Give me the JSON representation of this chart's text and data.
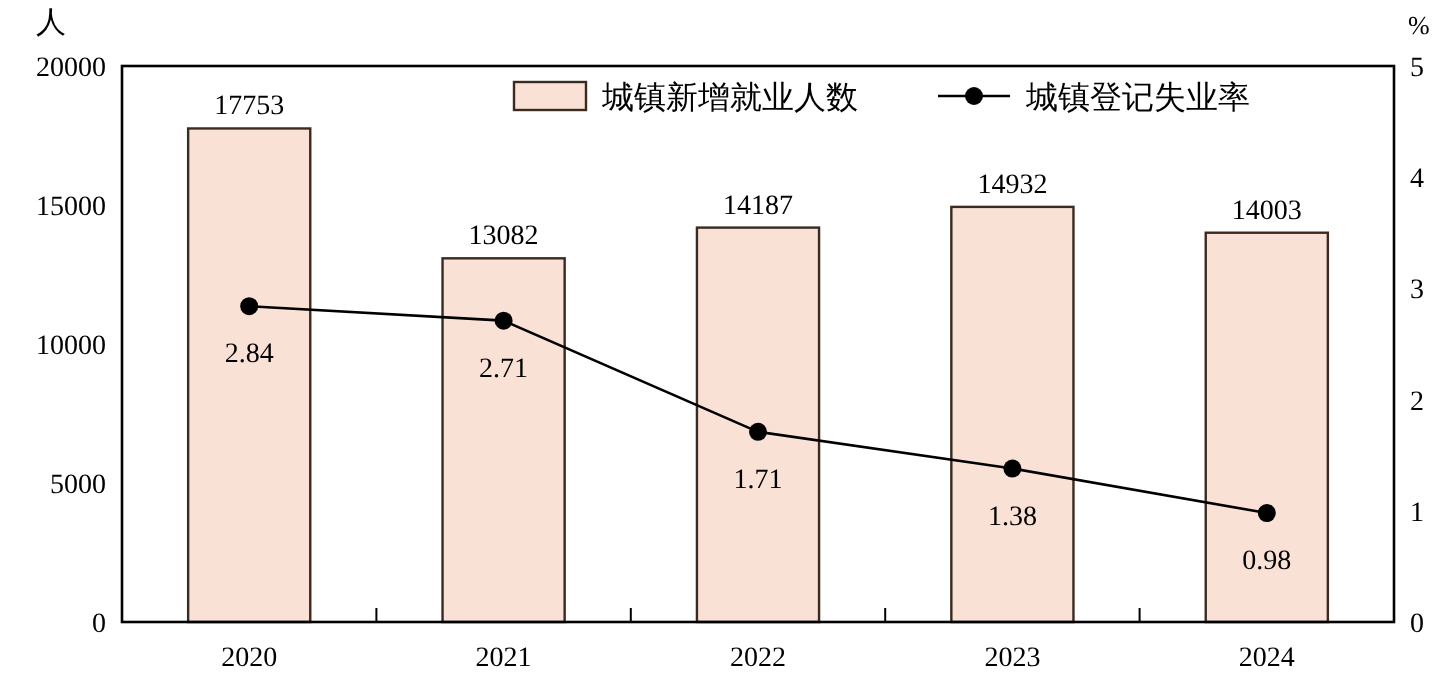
{
  "chart_data": {
    "type": "bar",
    "categories": [
      "2020",
      "2021",
      "2022",
      "2023",
      "2024"
    ],
    "ylabel": "人",
    "y2label": "%",
    "series": [
      {
        "name": "城镇新增就业人数",
        "color": "#f9e1d5",
        "values": [
          17753,
          13082,
          14187,
          14932,
          14003
        ]
      },
      {
        "name": "城镇登记失业率",
        "type": "line",
        "axis": "y2",
        "color": "#000000",
        "values": [
          2.84,
          2.71,
          1.71,
          1.38,
          0.98
        ]
      }
    ],
    "ylim": [
      0,
      20000
    ],
    "yticks": [
      0,
      5000,
      10000,
      15000,
      20000
    ],
    "y2lim": [
      0,
      5
    ],
    "y2ticks": [
      0,
      1,
      2,
      3,
      4,
      5
    ],
    "data_labels": true,
    "legend": "top right",
    "marker": "circle",
    "grid": false
  }
}
